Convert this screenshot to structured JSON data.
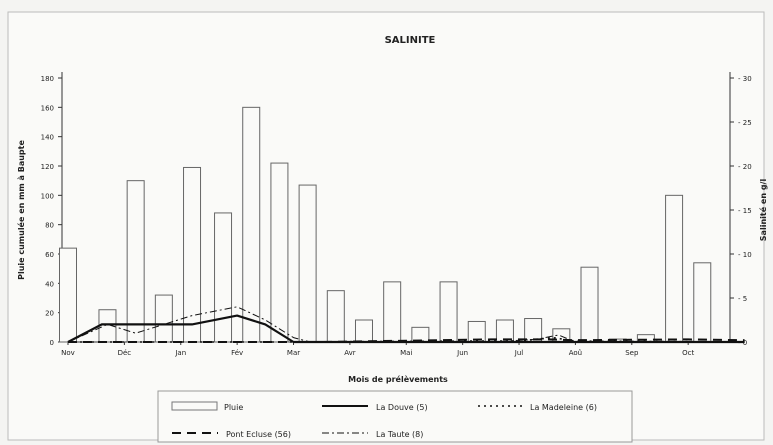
{
  "chart_data": {
    "type": "bar",
    "title": "SALINITE",
    "xlabel": "Mois de prélèvements",
    "ylabel_left": "Pluie cumulée en mm à Baupte",
    "ylabel_right": "Salinité en g/l",
    "ylim_left": [
      0,
      180
    ],
    "ylim_right": [
      0,
      30
    ],
    "yticks_left": [
      "0",
      "20",
      "40",
      "60",
      "80",
      "100",
      "120",
      "140",
      "160",
      "180"
    ],
    "yticks_right": [
      "0",
      "5",
      "10",
      "15",
      "20",
      "25",
      "30"
    ],
    "months": [
      "Nov",
      "Déc",
      "Jan",
      "Fév",
      "Mar",
      "Avr",
      "Mai",
      "Jun",
      "Jul",
      "Aoû",
      "Sep",
      "Oct"
    ],
    "pluie": [
      {
        "t": 0.0,
        "v": 64
      },
      {
        "t": 0.7,
        "v": 22
      },
      {
        "t": 1.2,
        "v": 110
      },
      {
        "t": 1.7,
        "v": 32
      },
      {
        "t": 2.2,
        "v": 119
      },
      {
        "t": 2.75,
        "v": 88
      },
      {
        "t": 3.25,
        "v": 160
      },
      {
        "t": 3.75,
        "v": 122
      },
      {
        "t": 4.25,
        "v": 107
      },
      {
        "t": 4.75,
        "v": 35
      },
      {
        "t": 5.25,
        "v": 15
      },
      {
        "t": 5.75,
        "v": 41
      },
      {
        "t": 6.25,
        "v": 10
      },
      {
        "t": 6.75,
        "v": 41
      },
      {
        "t": 7.25,
        "v": 14
      },
      {
        "t": 7.75,
        "v": 15
      },
      {
        "t": 8.25,
        "v": 16
      },
      {
        "t": 8.75,
        "v": 9
      },
      {
        "t": 9.25,
        "v": 51
      },
      {
        "t": 9.75,
        "v": 2
      },
      {
        "t": 10.25,
        "v": 5
      },
      {
        "t": 10.75,
        "v": 100
      },
      {
        "t": 11.25,
        "v": 54
      }
    ],
    "series": [
      {
        "name": "La Douve (5)",
        "style": "solid",
        "points": [
          [
            0,
            0
          ],
          [
            0.6,
            2
          ],
          [
            1.5,
            2
          ],
          [
            2.2,
            2
          ],
          [
            3.0,
            3
          ],
          [
            3.5,
            2
          ],
          [
            4.0,
            0
          ],
          [
            4.5,
            0
          ],
          [
            12,
            0
          ]
        ]
      },
      {
        "name": "La Madeleine (6)",
        "style": "dotted",
        "points": [
          [
            0,
            0
          ],
          [
            1,
            0
          ],
          [
            4,
            0
          ],
          [
            7,
            0.1
          ],
          [
            8,
            0.1
          ],
          [
            8.6,
            0.5
          ],
          [
            9,
            0.1
          ],
          [
            12,
            0
          ]
        ]
      },
      {
        "name": "Pont Ecluse (56)",
        "style": "dashed",
        "points": [
          [
            0,
            0
          ],
          [
            4.5,
            0
          ],
          [
            7.5,
            0.3
          ],
          [
            8.5,
            0.3
          ],
          [
            9,
            0.2
          ],
          [
            11,
            0.3
          ],
          [
            12,
            0.2
          ]
        ]
      },
      {
        "name": "La Taute (8)",
        "style": "dashdot",
        "points": [
          [
            0,
            0
          ],
          [
            0.7,
            2
          ],
          [
            1.2,
            1
          ],
          [
            1.7,
            2
          ],
          [
            2.2,
            3
          ],
          [
            3.0,
            4
          ],
          [
            3.5,
            2.5
          ],
          [
            4.0,
            0.5
          ],
          [
            4.3,
            0
          ],
          [
            7.5,
            0
          ],
          [
            8.3,
            0.3
          ],
          [
            8.7,
            0.8
          ],
          [
            9,
            0
          ],
          [
            12,
            0
          ]
        ]
      }
    ]
  }
}
